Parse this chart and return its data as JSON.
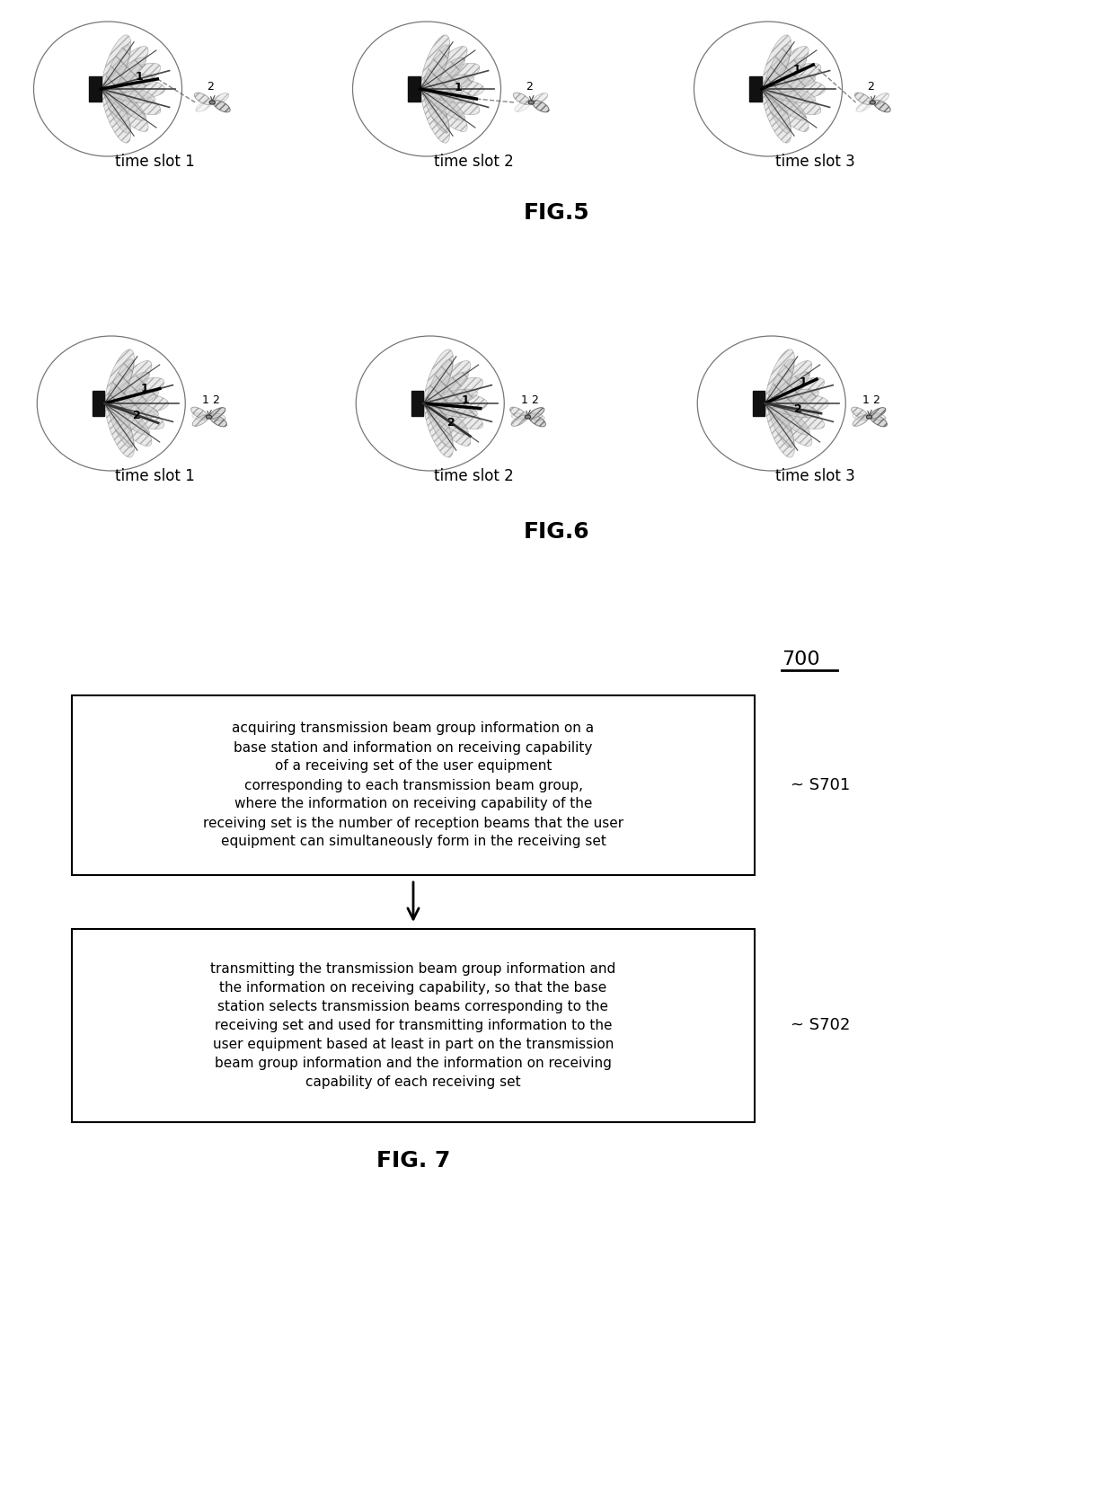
{
  "fig5_label": "FIG.5",
  "fig6_label": "FIG.6",
  "fig7_label": "FIG. 7",
  "fig7_ref": "700",
  "time_slots": [
    "time slot 1",
    "time slot 2",
    "time slot 3"
  ],
  "s701_label": "S701",
  "s702_label": "S702",
  "box1_text": "acquiring transmission beam group information on a\nbase station and information on receiving capability\nof a receiving set of the user equipment\ncorresponding to each transmission beam group,\nwhere the information on receiving capability of the\nreceiving set is the number of reception beams that the user\nequipment can simultaneously form in the receiving set",
  "box2_text": "transmitting the transmission beam group information and\nthe information on receiving capability, so that the base\nstation selects transmission beams corresponding to the\nreceiving set and used for transmitting information to the\nuser equipment based at least in part on the transmission\nbeam group information and the information on receiving\ncapability of each receiving set",
  "bg_color": "#ffffff",
  "text_color": "#000000"
}
